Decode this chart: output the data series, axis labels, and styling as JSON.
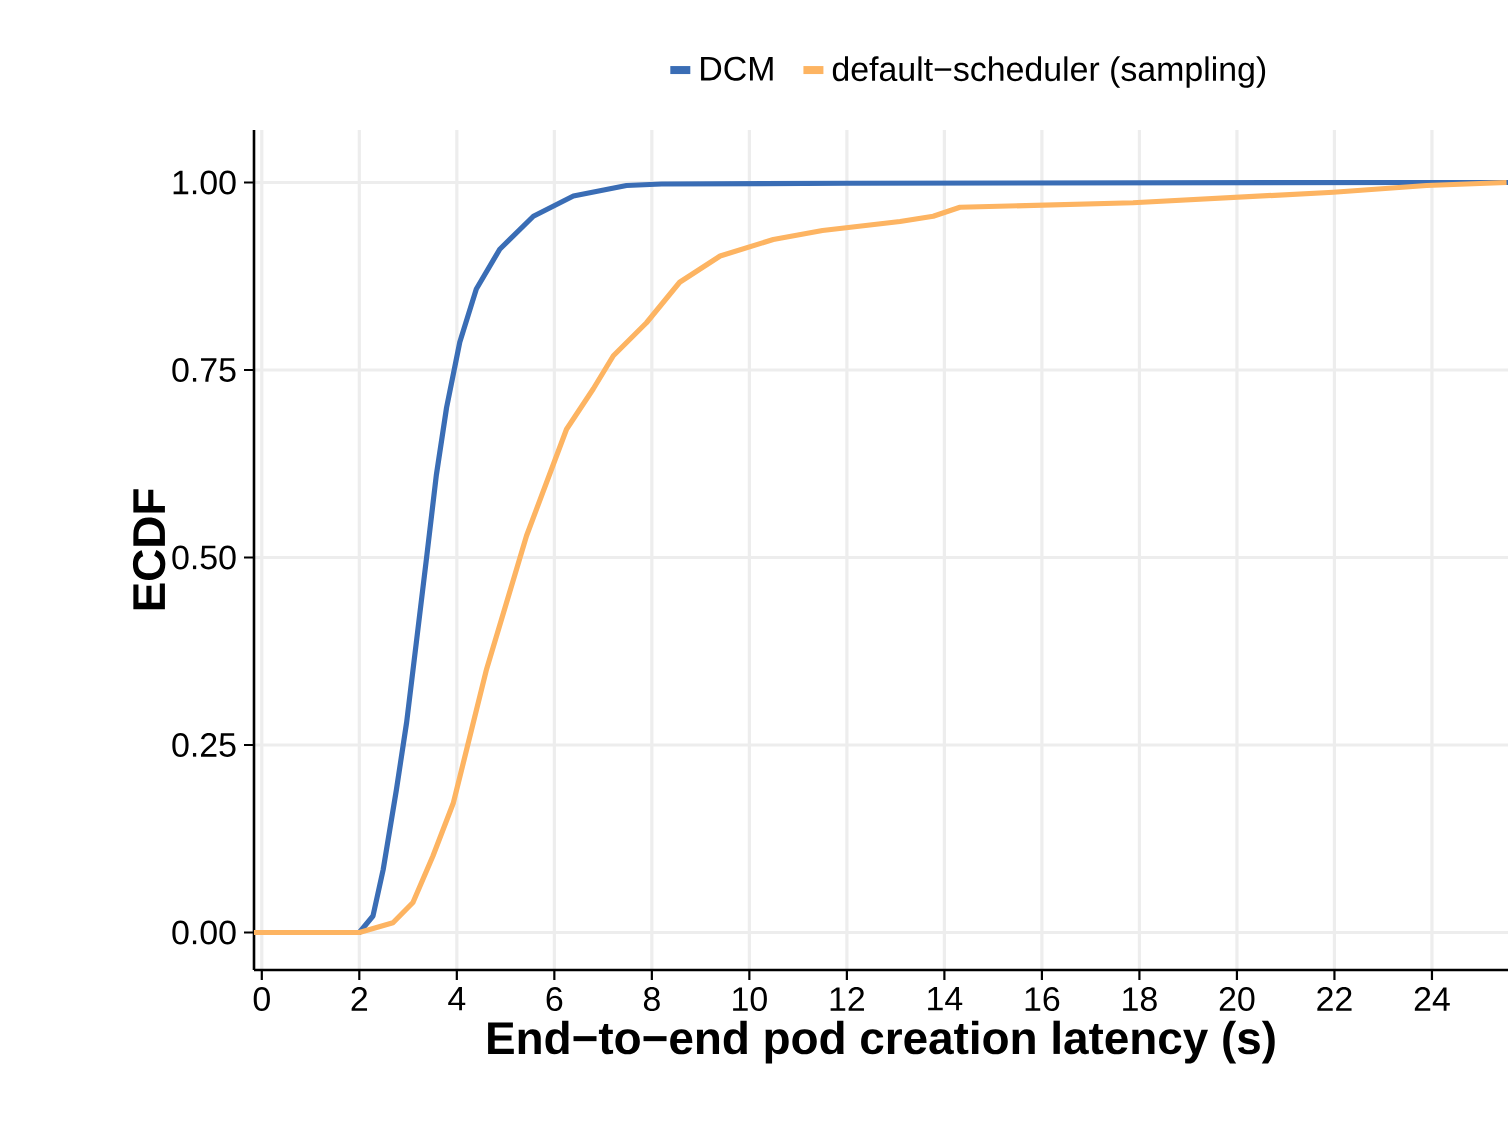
{
  "chart_data": {
    "type": "line",
    "xlabel": "End−to−end pod creation latency (s)",
    "ylabel": "ECDF",
    "xlim": [
      -0.16,
      25.56
    ],
    "ylim": [
      -0.05,
      1.07
    ],
    "xticks": [
      0,
      2,
      4,
      6,
      8,
      10,
      12,
      14,
      16,
      18,
      20,
      22,
      24
    ],
    "yticks": [
      {
        "value": 0,
        "label": "0.00"
      },
      {
        "value": 0.25,
        "label": "0.25"
      },
      {
        "value": 0.5,
        "label": "0.50"
      },
      {
        "value": 0.75,
        "label": "0.75"
      },
      {
        "value": 1,
        "label": "1.00"
      }
    ],
    "grid": true,
    "legend": "top",
    "marker": "none",
    "line_style": "solid",
    "series": [
      {
        "name": "DCM",
        "color": "#3a6db5",
        "x": [
          -0.16,
          2.0,
          2.28,
          2.49,
          2.76,
          2.97,
          3.17,
          3.38,
          3.58,
          3.79,
          4.06,
          4.4,
          4.88,
          5.57,
          6.39,
          7.48,
          8.2,
          12,
          24,
          25.56
        ],
        "values": [
          0,
          0,
          0.022,
          0.084,
          0.19,
          0.28,
          0.387,
          0.5,
          0.61,
          0.7,
          0.787,
          0.858,
          0.911,
          0.955,
          0.982,
          0.996,
          0.998,
          0.999,
          1.0,
          1.0
        ]
      },
      {
        "name": "default−scheduler (sampling)",
        "color": "#fdb462",
        "x": [
          -0.16,
          2.0,
          2.69,
          3.1,
          3.51,
          3.93,
          4.27,
          4.61,
          5.02,
          5.43,
          5.84,
          6.25,
          6.8,
          7.21,
          7.89,
          8.57,
          9.4,
          10.49,
          11.5,
          13.09,
          13.77,
          14.32,
          17.87,
          21.98,
          23.89,
          25.53
        ],
        "values": [
          0,
          0,
          0.013,
          0.04,
          0.102,
          0.173,
          0.262,
          0.351,
          0.44,
          0.529,
          0.6,
          0.671,
          0.725,
          0.769,
          0.813,
          0.867,
          0.902,
          0.924,
          0.936,
          0.948,
          0.955,
          0.967,
          0.973,
          0.987,
          0.996,
          1.0
        ]
      }
    ]
  }
}
